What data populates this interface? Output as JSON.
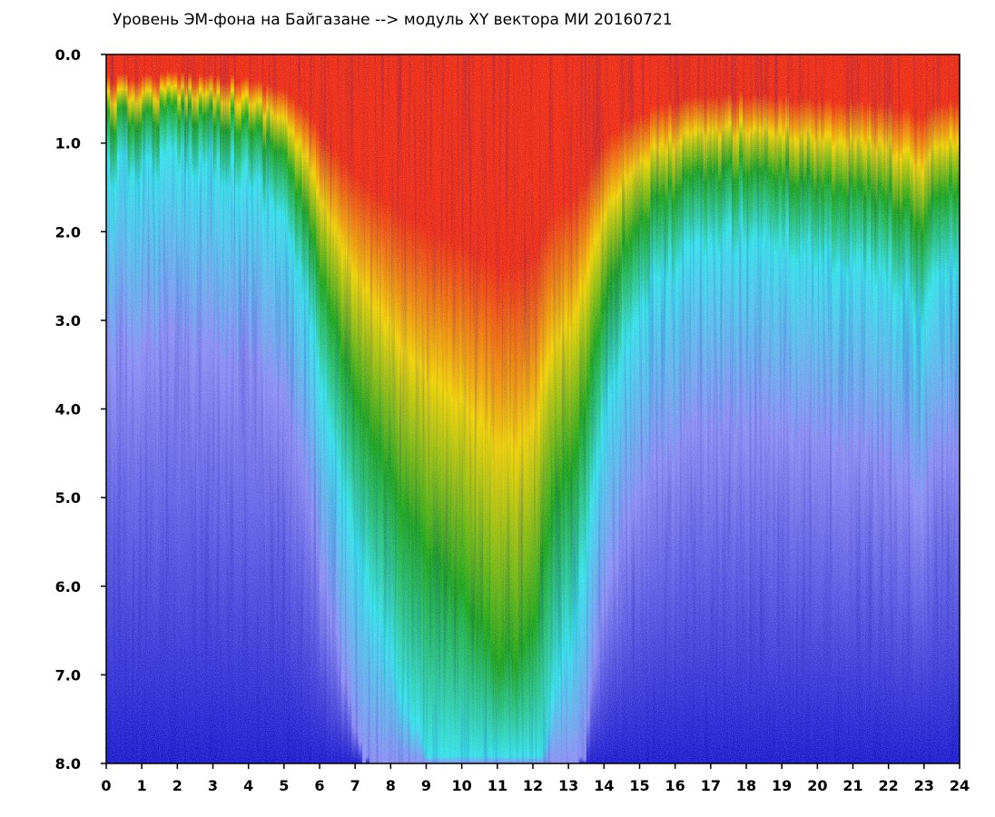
{
  "chart_data": {
    "type": "heatmap",
    "title": "Уровень ЭМ-фона на Байгазане  -->  модуль XY вектора МИ  20160721",
    "xlabel": "",
    "ylabel": "",
    "xlim": [
      0,
      24
    ],
    "ylim": [
      0,
      8
    ],
    "y_inverted": true,
    "x_ticks": [
      "0",
      "1",
      "2",
      "3",
      "4",
      "5",
      "6",
      "7",
      "8",
      "9",
      "10",
      "11",
      "12",
      "13",
      "14",
      "15",
      "16",
      "17",
      "18",
      "19",
      "20",
      "21",
      "22",
      "23",
      "24"
    ],
    "y_ticks": [
      "0.0",
      "1.0",
      "2.0",
      "3.0",
      "4.0",
      "5.0",
      "6.0",
      "7.0",
      "8.0"
    ],
    "grid": false,
    "colorscale": [
      "#ffffff",
      "#ee2a10",
      "#f0d000",
      "#19a419",
      "#33e0e8",
      "#8a8cf2",
      "#1a1ad0"
    ],
    "intensity_x": [
      0,
      1,
      2,
      3,
      4,
      5,
      5.5,
      6,
      6.5,
      7,
      8,
      9,
      10,
      10.5,
      11,
      11.5,
      12,
      12.5,
      13,
      13.5,
      14,
      14.5,
      15,
      16,
      17,
      18,
      19,
      20,
      21,
      22,
      23,
      23.5,
      24
    ],
    "intensity_y": [
      0.9,
      0.85,
      0.75,
      0.8,
      0.95,
      1.3,
      2.0,
      2.8,
      3.8,
      4.6,
      5.6,
      6.6,
      7.2,
      7.6,
      8.0,
      8.0,
      7.8,
      6.0,
      5.6,
      4.6,
      3.2,
      2.6,
      2.2,
      1.8,
      1.6,
      1.5,
      1.6,
      1.7,
      1.8,
      1.9,
      2.3,
      1.8,
      1.8
    ]
  }
}
